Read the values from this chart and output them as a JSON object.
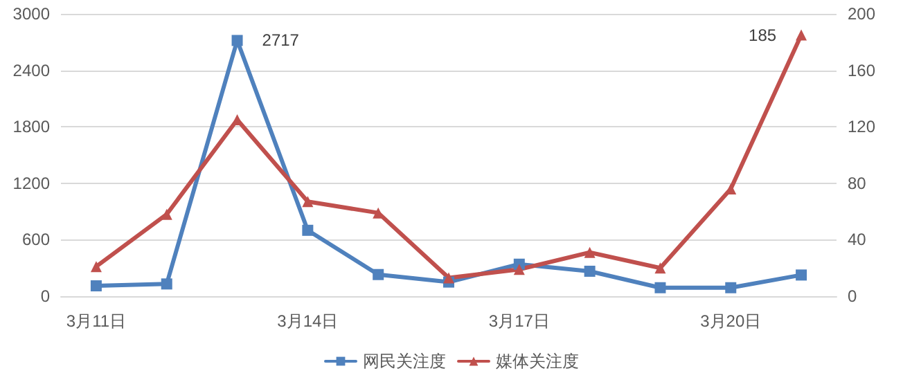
{
  "chart_data": {
    "type": "line",
    "categories": [
      "3月11日",
      null,
      null,
      "3月14日",
      null,
      null,
      "3月17日",
      null,
      null,
      "3月20日",
      null
    ],
    "series": [
      {
        "name": "网民关注度",
        "color": "#4f81bd",
        "marker": "square",
        "values": [
          110,
          130,
          2717,
          700,
          230,
          150,
          340,
          265,
          90,
          90,
          225
        ],
        "value_labels": [
          null,
          null,
          "2717",
          null,
          null,
          null,
          null,
          null,
          null,
          null,
          null
        ]
      },
      {
        "name": "媒体关注度",
        "color": "#c0504d",
        "marker": "triangle",
        "axis": "y2",
        "values": [
          21,
          58,
          125,
          67,
          59,
          13,
          19,
          31,
          20,
          76,
          185
        ],
        "value_labels": [
          null,
          null,
          null,
          null,
          null,
          null,
          null,
          null,
          null,
          null,
          "185"
        ]
      }
    ],
    "ylim": [
      0,
      3000
    ],
    "yticks": [
      0,
      600,
      1200,
      1800,
      2400,
      3000
    ],
    "y2lim": [
      0,
      200
    ],
    "y2ticks": [
      0,
      40,
      80,
      120,
      160,
      200
    ],
    "grid": "y",
    "legend": "bottom"
  }
}
